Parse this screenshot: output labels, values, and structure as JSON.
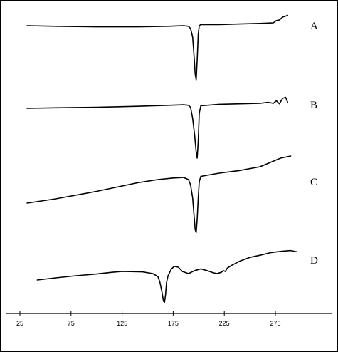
{
  "chart_data": {
    "type": "line",
    "title": "",
    "xlabel": "",
    "ylabel": "",
    "xlim": [
      25,
      310
    ],
    "x_ticks": [
      25,
      75,
      125,
      175,
      225,
      275
    ],
    "grid": false,
    "legend": "right, beside each curve",
    "series": [
      {
        "name": "A",
        "points": [
          [
            32,
            0.0
          ],
          [
            60,
            -0.01
          ],
          [
            100,
            -0.02
          ],
          [
            140,
            -0.02
          ],
          [
            170,
            -0.01
          ],
          [
            185,
            0.0
          ],
          [
            190,
            -0.01
          ],
          [
            192,
            -0.05
          ],
          [
            194,
            -0.2
          ],
          [
            195.5,
            -0.55
          ],
          [
            196.5,
            -0.85
          ],
          [
            197.5,
            -0.95
          ],
          [
            198.5,
            -0.6
          ],
          [
            199.5,
            -0.15
          ],
          [
            200.5,
            0.0
          ],
          [
            202,
            0.02
          ],
          [
            220,
            0.02
          ],
          [
            240,
            0.03
          ],
          [
            260,
            0.04
          ],
          [
            273,
            0.05
          ],
          [
            276,
            0.09
          ],
          [
            279,
            0.1
          ],
          [
            282,
            0.15
          ],
          [
            287,
            0.18
          ]
        ]
      },
      {
        "name": "B",
        "points": [
          [
            32,
            0.0
          ],
          [
            60,
            0.01
          ],
          [
            100,
            0.02
          ],
          [
            140,
            0.04
          ],
          [
            170,
            0.06
          ],
          [
            185,
            0.07
          ],
          [
            190,
            0.06
          ],
          [
            192,
            0.02
          ],
          [
            194,
            -0.2
          ],
          [
            196,
            -0.55
          ],
          [
            197.5,
            -0.88
          ],
          [
            198.5,
            -1.0
          ],
          [
            199.5,
            -0.65
          ],
          [
            200.5,
            -0.1
          ],
          [
            202,
            0.05
          ],
          [
            220,
            0.08
          ],
          [
            240,
            0.09
          ],
          [
            260,
            0.1
          ],
          [
            268,
            0.12
          ],
          [
            273,
            0.1
          ],
          [
            276,
            0.15
          ],
          [
            279,
            0.09
          ],
          [
            282,
            0.2
          ],
          [
            285,
            0.22
          ],
          [
            287,
            0.12
          ]
        ]
      },
      {
        "name": "C",
        "points": [
          [
            32,
            0.0
          ],
          [
            60,
            0.08
          ],
          [
            100,
            0.22
          ],
          [
            140,
            0.38
          ],
          [
            160,
            0.44
          ],
          [
            175,
            0.47
          ],
          [
            185,
            0.48
          ],
          [
            190,
            0.44
          ],
          [
            192,
            0.34
          ],
          [
            194,
            0.1
          ],
          [
            195.5,
            -0.25
          ],
          [
            196.5,
            -0.5
          ],
          [
            197.5,
            -0.55
          ],
          [
            198.5,
            -0.3
          ],
          [
            199.5,
            0.1
          ],
          [
            200.5,
            0.4
          ],
          [
            202,
            0.5
          ],
          [
            220,
            0.56
          ],
          [
            240,
            0.61
          ],
          [
            260,
            0.68
          ],
          [
            270,
            0.76
          ],
          [
            280,
            0.84
          ],
          [
            290,
            0.88
          ]
        ]
      },
      {
        "name": "D",
        "points": [
          [
            42,
            0.0
          ],
          [
            60,
            0.05
          ],
          [
            80,
            0.1
          ],
          [
            100,
            0.14
          ],
          [
            115,
            0.18
          ],
          [
            125,
            0.2
          ],
          [
            145,
            0.19
          ],
          [
            155,
            0.15
          ],
          [
            160,
            0.08
          ],
          [
            162,
            -0.05
          ],
          [
            164,
            -0.28
          ],
          [
            165.5,
            -0.5
          ],
          [
            166.5,
            -0.52
          ],
          [
            167.5,
            -0.35
          ],
          [
            168.5,
            -0.05
          ],
          [
            170,
            0.1
          ],
          [
            173,
            0.25
          ],
          [
            176,
            0.32
          ],
          [
            180,
            0.3
          ],
          [
            184,
            0.2
          ],
          [
            190,
            0.15
          ],
          [
            196,
            0.22
          ],
          [
            202,
            0.26
          ],
          [
            208,
            0.22
          ],
          [
            214,
            0.17
          ],
          [
            218,
            0.15
          ],
          [
            222,
            0.18
          ],
          [
            224,
            0.22
          ],
          [
            226,
            0.2
          ],
          [
            228,
            0.28
          ],
          [
            232,
            0.34
          ],
          [
            240,
            0.44
          ],
          [
            250,
            0.53
          ],
          [
            260,
            0.58
          ],
          [
            270,
            0.64
          ],
          [
            280,
            0.67
          ],
          [
            290,
            0.69
          ],
          [
            296,
            0.66
          ]
        ]
      }
    ]
  }
}
